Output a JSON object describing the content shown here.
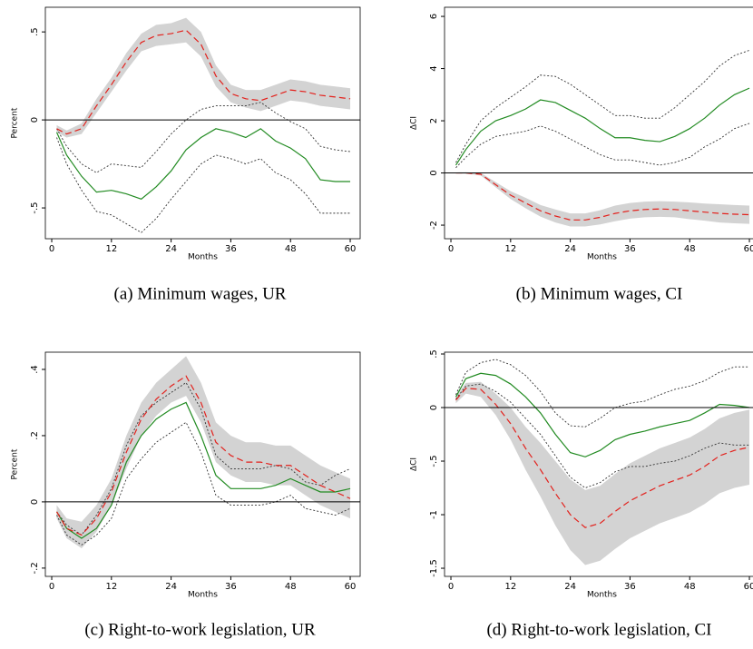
{
  "chart_data": [
    {
      "type": "line",
      "caption": "(a) Minimum wages, UR",
      "ylabel": "Percent",
      "xlabel": "Months",
      "x": [
        1,
        3,
        6,
        9,
        12,
        15,
        18,
        21,
        24,
        27,
        30,
        33,
        36,
        39,
        42,
        45,
        48,
        51,
        54,
        57,
        60
      ],
      "xlim": [
        -1.28,
        62
      ],
      "xticks": [
        0,
        12,
        24,
        36,
        48,
        60
      ],
      "ylim": [
        -0.675,
        0.64
      ],
      "yticks": [
        {
          "value": -0.5,
          "label": "-.5"
        },
        0,
        {
          "value": 0.5,
          "label": ".5"
        }
      ],
      "hline": 0,
      "band": {
        "color": "#d3d3d3",
        "upper": [
          -0.03,
          -0.06,
          -0.02,
          0.12,
          0.24,
          0.38,
          0.49,
          0.54,
          0.55,
          0.58,
          0.5,
          0.31,
          0.2,
          0.17,
          0.17,
          0.2,
          0.23,
          0.22,
          0.2,
          0.19,
          0.18
        ],
        "lower": [
          -0.07,
          -0.1,
          -0.08,
          0.04,
          0.16,
          0.28,
          0.39,
          0.42,
          0.43,
          0.44,
          0.36,
          0.19,
          0.1,
          0.07,
          0.05,
          0.08,
          0.11,
          0.1,
          0.08,
          0.07,
          0.06
        ]
      },
      "series": [
        {
          "color": "#333333",
          "dash": "dotted",
          "values": [
            -0.05,
            -0.15,
            -0.25,
            -0.3,
            -0.25,
            -0.26,
            -0.27,
            -0.18,
            -0.08,
            0.0,
            0.06,
            0.08,
            0.08,
            0.08,
            0.1,
            0.04,
            -0.01,
            -0.05,
            -0.15,
            -0.17,
            -0.18
          ]
        },
        {
          "color": "#333333",
          "dash": "dotted",
          "values": [
            -0.1,
            -0.25,
            -0.4,
            -0.52,
            -0.54,
            -0.59,
            -0.64,
            -0.56,
            -0.45,
            -0.35,
            -0.25,
            -0.2,
            -0.22,
            -0.25,
            -0.22,
            -0.3,
            -0.34,
            -0.42,
            -0.53,
            -0.53,
            -0.53
          ]
        },
        {
          "color": "#228b22",
          "dash": "solid",
          "values": [
            -0.07,
            -0.2,
            -0.32,
            -0.41,
            -0.4,
            -0.42,
            -0.45,
            -0.38,
            -0.29,
            -0.17,
            -0.1,
            -0.05,
            -0.07,
            -0.1,
            -0.05,
            -0.12,
            -0.16,
            -0.22,
            -0.34,
            -0.35,
            -0.35
          ]
        },
        {
          "color": "#e3211c",
          "dash": "dashed",
          "values": [
            -0.05,
            -0.08,
            -0.05,
            0.08,
            0.2,
            0.33,
            0.44,
            0.48,
            0.49,
            0.51,
            0.43,
            0.25,
            0.15,
            0.12,
            0.11,
            0.14,
            0.17,
            0.16,
            0.14,
            0.13,
            0.12
          ]
        }
      ]
    },
    {
      "type": "line",
      "caption": "(b) Minimum wages, CI",
      "ylabel": "ΔCI",
      "xlabel": "Months",
      "x": [
        1,
        3,
        6,
        9,
        12,
        15,
        18,
        21,
        24,
        27,
        30,
        33,
        36,
        39,
        42,
        45,
        48,
        51,
        54,
        57,
        60
      ],
      "xlim": [
        -1.28,
        62
      ],
      "xticks": [
        0,
        12,
        24,
        36,
        48,
        60
      ],
      "ylim": [
        -2.52,
        6.35
      ],
      "yticks": [
        -2,
        0,
        2,
        4,
        6
      ],
      "hline": 0,
      "band": {
        "color": "#d3d3d3",
        "upper": [
          0.02,
          0.03,
          0,
          -0.35,
          -0.7,
          -0.95,
          -1.23,
          -1.4,
          -1.55,
          -1.55,
          -1.43,
          -1.25,
          -1.15,
          -1.1,
          -1.08,
          -1.1,
          -1.13,
          -1.17,
          -1.2,
          -1.23,
          -1.25
        ],
        "lower": [
          -0.02,
          -0.03,
          -0.1,
          -0.55,
          -1.0,
          -1.35,
          -1.67,
          -1.9,
          -2.05,
          -2.05,
          -1.97,
          -1.85,
          -1.75,
          -1.7,
          -1.68,
          -1.7,
          -1.77,
          -1.83,
          -1.9,
          -1.93,
          -1.95
        ]
      },
      "series": [
        {
          "color": "#333333",
          "dash": "dotted",
          "values": [
            0.4,
            1.1,
            2.0,
            2.5,
            2.9,
            3.3,
            3.75,
            3.7,
            3.4,
            3.0,
            2.6,
            2.2,
            2.2,
            2.1,
            2.1,
            2.5,
            3.0,
            3.5,
            4.1,
            4.5,
            4.7
          ]
        },
        {
          "color": "#333333",
          "dash": "dotted",
          "values": [
            0.2,
            0.6,
            1.1,
            1.4,
            1.5,
            1.6,
            1.8,
            1.6,
            1.3,
            1.0,
            0.7,
            0.5,
            0.5,
            0.4,
            0.3,
            0.4,
            0.6,
            1.0,
            1.3,
            1.7,
            1.9
          ]
        },
        {
          "color": "#228b22",
          "dash": "solid",
          "values": [
            0.3,
            0.9,
            1.6,
            2.0,
            2.2,
            2.45,
            2.8,
            2.7,
            2.4,
            2.1,
            1.7,
            1.35,
            1.35,
            1.25,
            1.2,
            1.4,
            1.7,
            2.1,
            2.6,
            3.0,
            3.25
          ]
        },
        {
          "color": "#e3211c",
          "dash": "dashed",
          "values": [
            0,
            0,
            -0.05,
            -0.45,
            -0.85,
            -1.15,
            -1.45,
            -1.65,
            -1.8,
            -1.8,
            -1.7,
            -1.55,
            -1.45,
            -1.4,
            -1.38,
            -1.4,
            -1.45,
            -1.5,
            -1.55,
            -1.58,
            -1.6
          ]
        }
      ]
    },
    {
      "type": "line",
      "caption": "(c) Right-to-work legislation, UR",
      "ylabel": "Percent",
      "xlabel": "Months",
      "x": [
        1,
        3,
        6,
        9,
        12,
        15,
        18,
        21,
        24,
        27,
        30,
        33,
        36,
        39,
        42,
        45,
        48,
        51,
        54,
        57,
        60
      ],
      "xlim": [
        -1.28,
        62
      ],
      "xticks": [
        0,
        12,
        24,
        36,
        48,
        60
      ],
      "ylim": [
        -0.225,
        0.452
      ],
      "yticks": [
        {
          "value": -0.2,
          "label": "-.2"
        },
        0,
        {
          "value": 0.2,
          "label": ".2"
        },
        {
          "value": 0.4,
          "label": ".4"
        }
      ],
      "hline": 0,
      "band": {
        "color": "#d3d3d3",
        "upper": [
          -0.01,
          -0.05,
          -0.06,
          -0.01,
          0.07,
          0.2,
          0.3,
          0.36,
          0.4,
          0.44,
          0.36,
          0.24,
          0.2,
          0.18,
          0.18,
          0.17,
          0.17,
          0.14,
          0.11,
          0.09,
          0.07
        ],
        "lower": [
          -0.05,
          -0.11,
          -0.14,
          -0.09,
          -0.01,
          0.1,
          0.2,
          0.26,
          0.3,
          0.32,
          0.24,
          0.12,
          0.08,
          0.06,
          0.06,
          0.05,
          0.05,
          0.02,
          -0.01,
          -0.03,
          -0.05
        ]
      },
      "series": [
        {
          "color": "#333333",
          "dash": "dotted",
          "values": [
            -0.03,
            -0.07,
            -0.1,
            -0.04,
            0.04,
            0.17,
            0.26,
            0.3,
            0.33,
            0.36,
            0.28,
            0.14,
            0.1,
            0.1,
            0.1,
            0.11,
            0.1,
            0.06,
            0.05,
            0.08,
            0.1
          ]
        },
        {
          "color": "#333333",
          "dash": "dotted",
          "values": [
            -0.04,
            -0.1,
            -0.13,
            -0.1,
            -0.05,
            0.07,
            0.13,
            0.18,
            0.21,
            0.24,
            0.15,
            0.02,
            -0.01,
            -0.01,
            -0.01,
            0.0,
            0.02,
            -0.02,
            -0.03,
            -0.04,
            -0.02
          ]
        },
        {
          "color": "#228b22",
          "dash": "solid",
          "values": [
            -0.03,
            -0.08,
            -0.11,
            -0.08,
            -0.01,
            0.12,
            0.2,
            0.25,
            0.28,
            0.3,
            0.2,
            0.08,
            0.04,
            0.04,
            0.04,
            0.05,
            0.07,
            0.05,
            0.03,
            0.03,
            0.04
          ]
        },
        {
          "color": "#e3211c",
          "dash": "dashed",
          "values": [
            -0.03,
            -0.08,
            -0.1,
            -0.05,
            0.03,
            0.15,
            0.25,
            0.31,
            0.35,
            0.38,
            0.3,
            0.18,
            0.14,
            0.12,
            0.12,
            0.11,
            0.11,
            0.08,
            0.05,
            0.03,
            0.01
          ]
        }
      ]
    },
    {
      "type": "line",
      "caption": "(d) Right-to-work legislation, CI",
      "ylabel": "ΔCI",
      "xlabel": "Months",
      "x": [
        1,
        3,
        6,
        9,
        12,
        15,
        18,
        21,
        24,
        27,
        30,
        33,
        36,
        39,
        42,
        45,
        48,
        51,
        54,
        57,
        60
      ],
      "xlim": [
        -1.28,
        62
      ],
      "xticks": [
        0,
        12,
        24,
        36,
        48,
        60
      ],
      "ylim": [
        -1.576,
        0.517
      ],
      "yticks": [
        -1.5,
        -1,
        {
          "value": -0.5,
          "label": "-.5"
        },
        0,
        {
          "value": 0.5,
          "label": ".5"
        }
      ],
      "hline": 0,
      "band": {
        "color": "#d3d3d3",
        "upper": [
          0.1,
          0.23,
          0.24,
          0.13,
          0,
          -0.18,
          -0.33,
          -0.5,
          -0.67,
          -0.77,
          -0.73,
          -0.62,
          -0.52,
          -0.45,
          -0.38,
          -0.33,
          -0.28,
          -0.2,
          -0.1,
          -0.05,
          -0.02
        ],
        "lower": [
          0.04,
          0.13,
          0.1,
          -0.07,
          -0.3,
          -0.58,
          -0.83,
          -1.1,
          -1.33,
          -1.47,
          -1.43,
          -1.32,
          -1.22,
          -1.15,
          -1.08,
          -1.03,
          -0.98,
          -0.9,
          -0.8,
          -0.75,
          -0.72
        ]
      },
      "series": [
        {
          "color": "#333333",
          "dash": "dotted",
          "values": [
            0.12,
            0.33,
            0.42,
            0.45,
            0.4,
            0.3,
            0.15,
            -0.05,
            -0.17,
            -0.18,
            -0.1,
            0.0,
            0.04,
            0.06,
            0.12,
            0.17,
            0.2,
            0.25,
            0.33,
            0.38,
            0.38
          ]
        },
        {
          "color": "#333333",
          "dash": "dotted",
          "values": [
            0.08,
            0.2,
            0.22,
            0.15,
            0.05,
            -0.1,
            -0.25,
            -0.45,
            -0.65,
            -0.75,
            -0.7,
            -0.6,
            -0.55,
            -0.55,
            -0.52,
            -0.5,
            -0.45,
            -0.38,
            -0.33,
            -0.35,
            -0.35
          ]
        },
        {
          "color": "#228b22",
          "dash": "solid",
          "values": [
            0.1,
            0.27,
            0.32,
            0.3,
            0.22,
            0.1,
            -0.05,
            -0.25,
            -0.42,
            -0.46,
            -0.4,
            -0.3,
            -0.25,
            -0.22,
            -0.18,
            -0.15,
            -0.12,
            -0.05,
            0.03,
            0.02,
            0.0
          ]
        },
        {
          "color": "#e3211c",
          "dash": "dashed",
          "values": [
            0.07,
            0.18,
            0.17,
            0.03,
            -0.15,
            -0.38,
            -0.58,
            -0.8,
            -1.0,
            -1.12,
            -1.08,
            -0.97,
            -0.87,
            -0.8,
            -0.73,
            -0.68,
            -0.63,
            -0.55,
            -0.45,
            -0.4,
            -0.37
          ]
        }
      ]
    }
  ]
}
